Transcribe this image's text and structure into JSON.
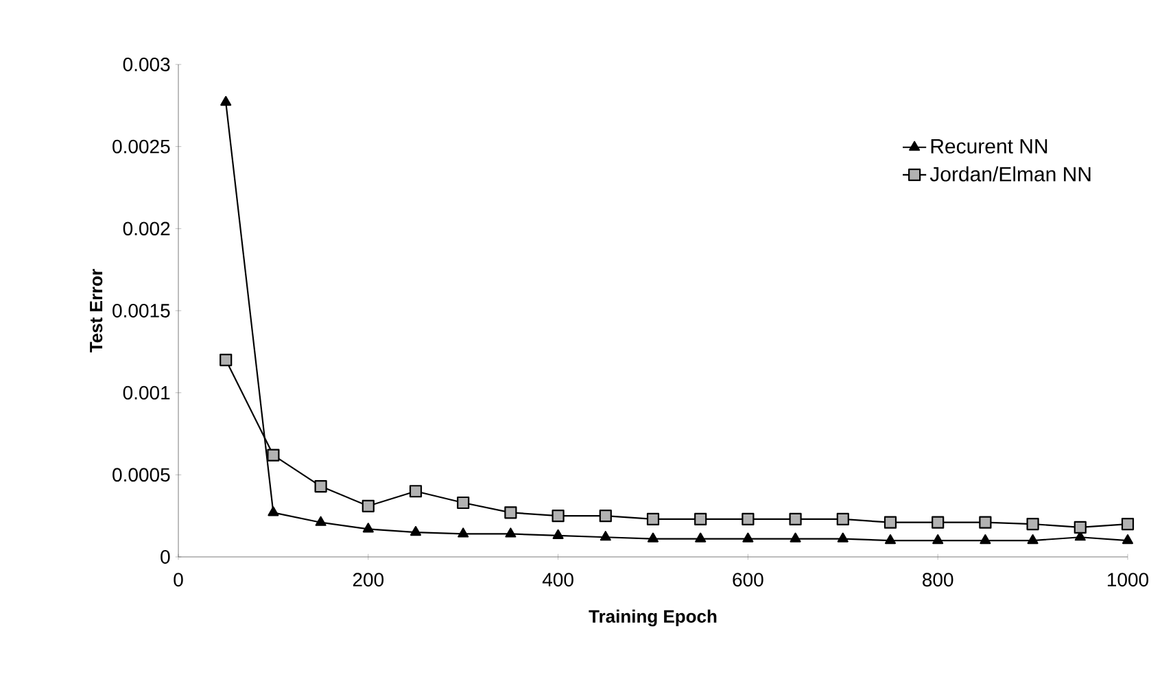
{
  "chart_data": {
    "type": "line",
    "xlabel": "Training Epoch",
    "ylabel": "Test Error",
    "x": [
      50,
      100,
      150,
      200,
      250,
      300,
      350,
      400,
      450,
      500,
      550,
      600,
      650,
      700,
      750,
      800,
      850,
      900,
      950,
      1000
    ],
    "series": [
      {
        "name": "Recurent NN",
        "color": "#000000",
        "marker": "triangle",
        "values": [
          0.00277,
          0.00027,
          0.00021,
          0.00017,
          0.00015,
          0.00014,
          0.00014,
          0.00013,
          0.00012,
          0.00011,
          0.00011,
          0.00011,
          0.00011,
          0.00011,
          0.0001,
          0.0001,
          0.0001,
          0.0001,
          0.00012,
          0.0001
        ]
      },
      {
        "name": "Jordan/Elman NN",
        "color": "#000000",
        "marker": "square",
        "values": [
          0.0012,
          0.00062,
          0.00043,
          0.00031,
          0.0004,
          0.00033,
          0.00027,
          0.00025,
          0.00025,
          0.00023,
          0.00023,
          0.00023,
          0.00023,
          0.00023,
          0.00021,
          0.00021,
          0.00021,
          0.0002,
          0.00018,
          0.0002
        ]
      }
    ],
    "xlim": [
      0,
      1000
    ],
    "xticks": [
      0,
      200,
      400,
      600,
      800,
      1000
    ],
    "ylim": [
      0,
      0.003
    ],
    "yticks": [
      0,
      0.0005,
      0.001,
      0.0015,
      0.002,
      0.0025,
      0.003
    ],
    "grid": false,
    "legend": "top right",
    "line_style": "solid"
  }
}
